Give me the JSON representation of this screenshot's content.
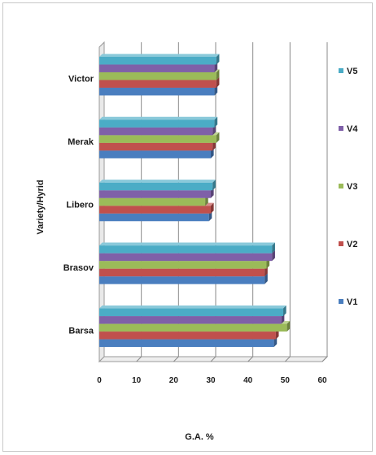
{
  "chart_data": {
    "type": "bar",
    "orientation": "horizontal",
    "style": "3d-clustered",
    "title": "",
    "xlabel": "G.A. %",
    "ylabel": "Variety/Hyrid",
    "categories": [
      "Barsa",
      "Brasov",
      "Libero",
      "Merak",
      "Victor"
    ],
    "series": [
      {
        "name": "V1",
        "color": "#4a7ebf",
        "values": [
          47,
          44.5,
          29.5,
          30,
          31
        ]
      },
      {
        "name": "V2",
        "color": "#c0504d",
        "values": [
          47.5,
          44.5,
          30,
          30.5,
          31.5
        ]
      },
      {
        "name": "V3",
        "color": "#9bbb59",
        "values": [
          50.5,
          45,
          28.5,
          31.5,
          31.5
        ]
      },
      {
        "name": "V4",
        "color": "#7f60a8",
        "values": [
          49,
          46.5,
          30,
          30.5,
          31
        ]
      },
      {
        "name": "V5",
        "color": "#4bacc6",
        "values": [
          49.5,
          46.5,
          30.5,
          31,
          31.5
        ]
      }
    ],
    "xlim": [
      0,
      60
    ],
    "xticks": [
      "0",
      "10",
      "20",
      "30",
      "40",
      "50",
      "60"
    ],
    "grid": true,
    "legend_position": "right"
  }
}
